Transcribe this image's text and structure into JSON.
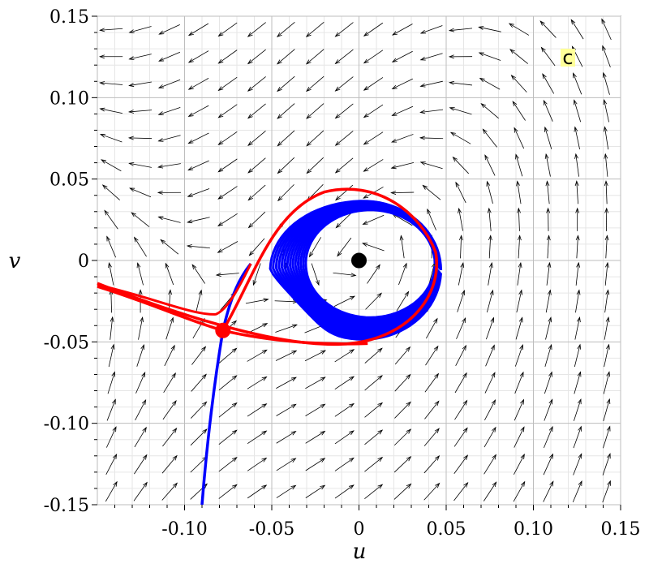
{
  "chart_data": {
    "type": "phase-portrait",
    "xlabel": "u",
    "ylabel": "v",
    "xlim": [
      -0.15,
      0.15
    ],
    "ylim": [
      -0.15,
      0.15
    ],
    "grid": true,
    "panel_label": "c",
    "x_ticks": [
      -0.1,
      -0.05,
      0,
      0.05,
      0.1,
      0.15
    ],
    "x_tick_labels": [
      "-0.10",
      "-0.05",
      "0",
      "0.05",
      "0.10",
      "0.15"
    ],
    "y_ticks": [
      -0.15,
      -0.1,
      -0.05,
      0,
      0.05,
      0.1,
      0.15
    ],
    "y_tick_labels": [
      "-0.15",
      "-0.10",
      "-0.05",
      "0",
      "0.05",
      "0.10",
      "0.15"
    ],
    "equilibria": [
      {
        "u": 0.0,
        "v": 0.0,
        "color": "#000000"
      },
      {
        "u": -0.078,
        "v": -0.043,
        "color": "#ff0000"
      }
    ],
    "colors": {
      "stable_manifold": "#0000ff",
      "unstable_manifold": "#ff0000",
      "field_arrows": "#000000",
      "grid": "#c8c8c8"
    }
  }
}
